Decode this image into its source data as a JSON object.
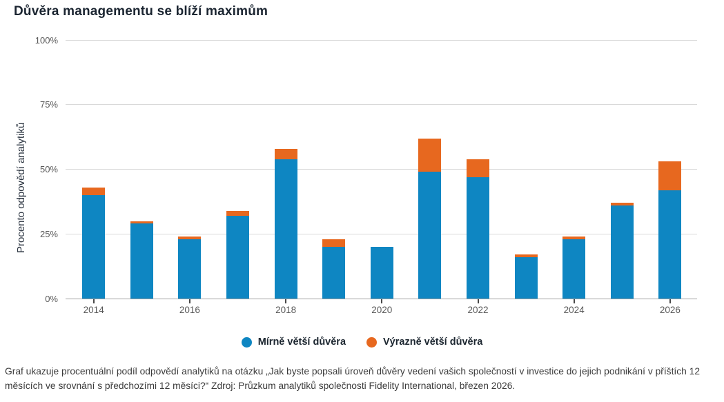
{
  "title": "Důvěra managementu se blíží maximům",
  "caption": "Graf ukazuje procentuální podíl odpovědí analytiků na otázku „Jak byste popsali úroveň důvěry vedení vašich společností v investice do jejich podnikání v příštích 12 měsících ve srovnání s předchozími 12 měsíci?“ Zdroj: Průzkum analytiků společnosti Fidelity International, březen 2026.",
  "colors": {
    "series_blue": "#0e86c2",
    "series_orange": "#e7681f",
    "title_text": "#1b2531",
    "axis_text": "#595959",
    "gridline": "#d9d9d9",
    "axis_line": "#9d9d9d",
    "caption_text": "#3b3b3b"
  },
  "chart_data": {
    "type": "bar",
    "stacked": true,
    "title": "Důvěra managementu se blíží maximům",
    "ylabel": "Procento odpovědí analytiků",
    "xlabel": "",
    "ylim": [
      0,
      100
    ],
    "y_ticks": [
      "0%",
      "25%",
      "50%",
      "75%",
      "100%"
    ],
    "grid": "horizontal",
    "legend_position": "bottom",
    "categories": [
      "2014",
      "2015",
      "2016",
      "2017",
      "2018",
      "2019",
      "2020",
      "2021",
      "2022",
      "2023",
      "2024",
      "2025",
      "2026"
    ],
    "x_ticks_shown": [
      "2014",
      "2016",
      "2018",
      "2020",
      "2022",
      "2024",
      "2026"
    ],
    "series": [
      {
        "name": "Mírně větší důvěra",
        "color": "#0e86c2",
        "values": [
          40,
          29,
          23,
          32,
          54,
          20,
          20,
          49,
          47,
          16,
          23,
          36,
          42
        ]
      },
      {
        "name": "Výrazně větší důvěra",
        "color": "#e7681f",
        "values": [
          3,
          1,
          1,
          2,
          4,
          3,
          0,
          13,
          7,
          1,
          1,
          1,
          11
        ]
      }
    ],
    "totals": [
      43,
      30,
      24,
      34,
      58,
      23,
      20,
      62,
      54,
      17,
      24,
      37,
      53
    ]
  }
}
